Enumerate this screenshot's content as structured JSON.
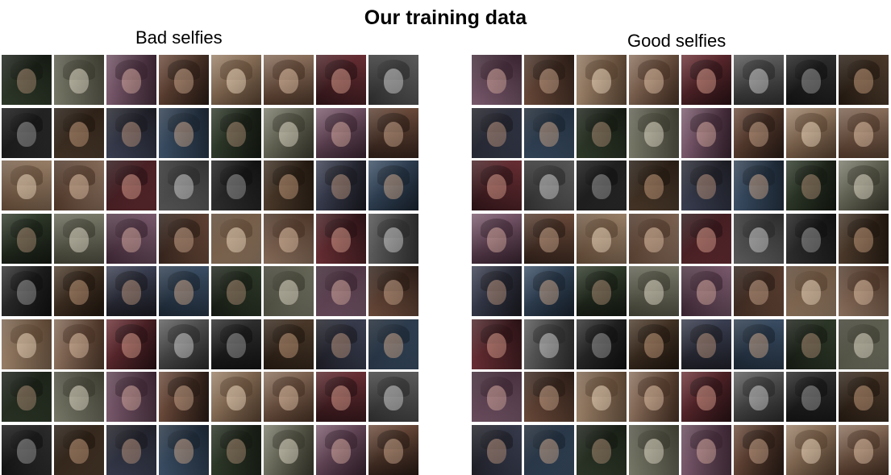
{
  "title": "Our training data",
  "panels": {
    "bad": {
      "title": "Bad selfies",
      "photo_count": 64
    },
    "good": {
      "title": "Good selfies",
      "photo_count": 64
    }
  }
}
